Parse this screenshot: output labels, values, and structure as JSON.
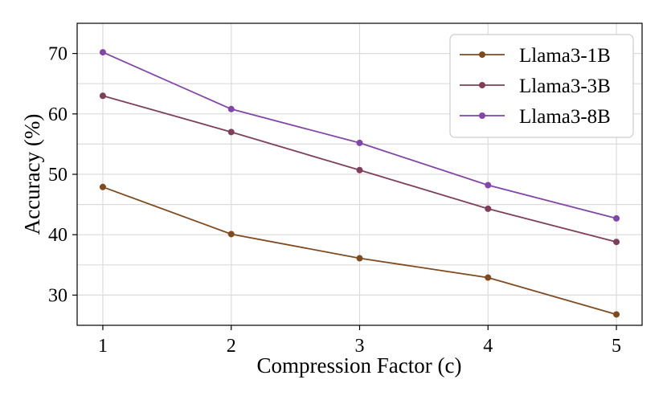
{
  "chart_data": {
    "type": "line",
    "title": "",
    "xlabel": "Compression Factor (c)",
    "ylabel": "Accuracy (%)",
    "x": [
      1,
      2,
      3,
      4,
      5
    ],
    "x_tick_labels": [
      "1",
      "2",
      "3",
      "4",
      "5"
    ],
    "xlim": [
      0.8,
      5.2
    ],
    "ylim": [
      25,
      75
    ],
    "y_ticks": [
      30,
      40,
      50,
      60,
      70
    ],
    "y_tick_labels": [
      "30",
      "40",
      "50",
      "60",
      "70"
    ],
    "grid": true,
    "legend_position": "top-right",
    "series": [
      {
        "name": "Llama3-1B",
        "color": "#7f4a1e",
        "values": [
          47.9,
          40.1,
          36.1,
          32.9,
          26.8
        ]
      },
      {
        "name": "Llama3-3B",
        "color": "#7f3f5a",
        "values": [
          63.0,
          57.0,
          50.7,
          44.3,
          38.8
        ]
      },
      {
        "name": "Llama3-8B",
        "color": "#8245a8",
        "values": [
          70.2,
          60.8,
          55.2,
          48.2,
          42.7
        ]
      }
    ]
  }
}
